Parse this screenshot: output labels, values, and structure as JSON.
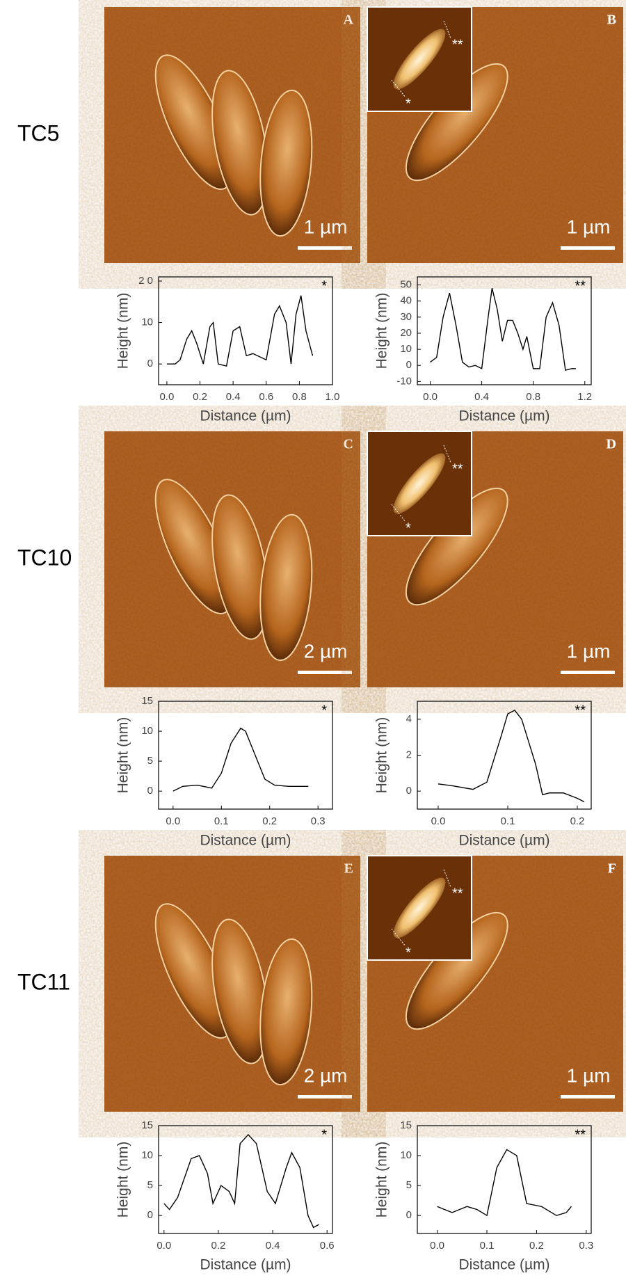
{
  "rows": [
    {
      "label": "TC5",
      "panels": [
        {
          "letter": "A",
          "scale": "1 µm"
        },
        {
          "letter": "B",
          "scale": "1 µm",
          "inset_labels": [
            "*",
            "**"
          ]
        }
      ]
    },
    {
      "label": "TC10",
      "panels": [
        {
          "letter": "C",
          "scale": "2 µm"
        },
        {
          "letter": "D",
          "scale": "1 µm",
          "inset_labels": [
            "*",
            "**"
          ]
        }
      ]
    },
    {
      "label": "TC11",
      "panels": [
        {
          "letter": "E",
          "scale": "2 µm"
        },
        {
          "letter": "F",
          "scale": "1 µm",
          "inset_labels": [
            "*",
            "**"
          ]
        }
      ]
    }
  ],
  "chart_data": [
    {
      "type": "line",
      "annotation": "*",
      "x_label": "Distance (µm)",
      "y_label": "Height (nm)",
      "x": [
        0,
        0.05,
        0.08,
        0.12,
        0.15,
        0.18,
        0.22,
        0.26,
        0.28,
        0.31,
        0.36,
        0.4,
        0.44,
        0.48,
        0.52,
        0.6,
        0.65,
        0.68,
        0.72,
        0.75,
        0.78,
        0.81,
        0.84,
        0.88
      ],
      "series": [
        {
          "color": "#000000",
          "values": [
            0,
            0,
            1,
            6,
            8,
            5,
            0,
            9,
            10,
            0,
            -0.5,
            8,
            9,
            2,
            2.5,
            1,
            12,
            14,
            10,
            0,
            12,
            16.5,
            8,
            2
          ]
        }
      ],
      "xlim": [
        -0.05,
        1.0
      ],
      "xticks": [
        {
          "value": 0,
          "label": "0.0"
        },
        0.2,
        0.4,
        0.6,
        0.8,
        {
          "value": 1,
          "label": "1.0"
        }
      ],
      "ylim": [
        -5,
        21
      ],
      "yticks": [
        0,
        10,
        {
          "value": 20,
          "label": "2 0"
        }
      ]
    },
    {
      "type": "line",
      "annotation": "**",
      "x_label": "Distance (µm)",
      "y_label": "Height (nm)",
      "x": [
        0,
        0.05,
        0.1,
        0.15,
        0.2,
        0.25,
        0.3,
        0.35,
        0.4,
        0.45,
        0.48,
        0.52,
        0.56,
        0.6,
        0.64,
        0.68,
        0.72,
        0.75,
        0.8,
        0.85,
        0.9,
        0.95,
        1.0,
        1.05,
        1.1,
        1.13
      ],
      "series": [
        {
          "color": "#000000",
          "values": [
            2,
            5,
            30,
            45,
            25,
            2,
            -1,
            0,
            -2,
            30,
            48,
            35,
            15,
            28,
            28,
            20,
            10,
            18,
            -2,
            -2,
            30,
            39,
            25,
            -3,
            -2,
            -2
          ]
        }
      ],
      "xlim": [
        -0.1,
        1.25
      ],
      "xticks": [
        {
          "value": 0,
          "label": "0.0"
        },
        0.4,
        0.8,
        1.2
      ],
      "ylim": [
        -12,
        55
      ],
      "yticks": [
        -10,
        0,
        10,
        20,
        30,
        40,
        50
      ]
    },
    {
      "type": "line",
      "annotation": "*",
      "x_label": "Distance (µm)",
      "y_label": "Height (nm)",
      "x": [
        0,
        0.02,
        0.05,
        0.08,
        0.1,
        0.12,
        0.14,
        0.15,
        0.17,
        0.19,
        0.21,
        0.24,
        0.28
      ],
      "series": [
        {
          "color": "#000000",
          "values": [
            0,
            0.8,
            1,
            0.5,
            3,
            8,
            10.5,
            10,
            6,
            2,
            1,
            0.8,
            0.8
          ]
        }
      ],
      "xlim": [
        -0.03,
        0.33
      ],
      "xticks": [
        {
          "value": 0,
          "label": "0.0"
        },
        0.1,
        0.2,
        0.3
      ],
      "ylim": [
        -3,
        15
      ],
      "yticks": [
        0,
        5,
        10,
        15
      ]
    },
    {
      "type": "line",
      "annotation": "**",
      "x_label": "Distance (µm)",
      "y_label": "Height (nm)",
      "x": [
        0,
        0.02,
        0.05,
        0.07,
        0.09,
        0.1,
        0.11,
        0.12,
        0.14,
        0.15,
        0.16,
        0.18,
        0.2,
        0.21
      ],
      "series": [
        {
          "color": "#000000",
          "values": [
            0.4,
            0.3,
            0.1,
            0.5,
            3,
            4.3,
            4.5,
            4,
            1.5,
            -0.2,
            -0.1,
            -0.1,
            -0.4,
            -0.6
          ]
        }
      ],
      "xlim": [
        -0.03,
        0.22
      ],
      "xticks": [
        {
          "value": 0,
          "label": "0.0"
        },
        0.1,
        0.2
      ],
      "ylim": [
        -1,
        5
      ],
      "yticks": [
        0,
        2,
        4
      ]
    },
    {
      "type": "line",
      "annotation": "*",
      "x_label": "Distance (µm)",
      "y_label": "Height (nm)",
      "x": [
        0,
        0.02,
        0.05,
        0.1,
        0.13,
        0.16,
        0.18,
        0.21,
        0.24,
        0.26,
        0.28,
        0.31,
        0.34,
        0.38,
        0.41,
        0.45,
        0.47,
        0.5,
        0.53,
        0.55,
        0.57
      ],
      "series": [
        {
          "color": "#000000",
          "values": [
            2,
            1,
            3,
            9.5,
            10,
            7,
            2,
            5,
            4,
            2,
            12,
            13.5,
            12,
            4,
            2,
            8,
            10.5,
            8,
            0,
            -2,
            -1.5
          ]
        }
      ],
      "xlim": [
        -0.02,
        0.62
      ],
      "xticks": [
        {
          "value": 0,
          "label": "0.0"
        },
        0.2,
        0.4,
        0.6
      ],
      "ylim": [
        -3,
        15
      ],
      "yticks": [
        0,
        5,
        10,
        15
      ]
    },
    {
      "type": "line",
      "annotation": "**",
      "x_label": "Distance (µm)",
      "y_label": "Height (nm)",
      "x": [
        0,
        0.03,
        0.06,
        0.08,
        0.1,
        0.12,
        0.14,
        0.16,
        0.18,
        0.21,
        0.24,
        0.26,
        0.27
      ],
      "series": [
        {
          "color": "#000000",
          "values": [
            1.5,
            0.5,
            1.5,
            1,
            0,
            8,
            11,
            10,
            2,
            1.5,
            0,
            0.5,
            1.5
          ]
        }
      ],
      "xlim": [
        -0.04,
        0.31
      ],
      "xticks": [
        {
          "value": 0,
          "label": "0.0"
        },
        0.1,
        0.2,
        0.3
      ],
      "ylim": [
        -3,
        15
      ],
      "yticks": [
        0,
        5,
        10,
        15
      ]
    }
  ]
}
